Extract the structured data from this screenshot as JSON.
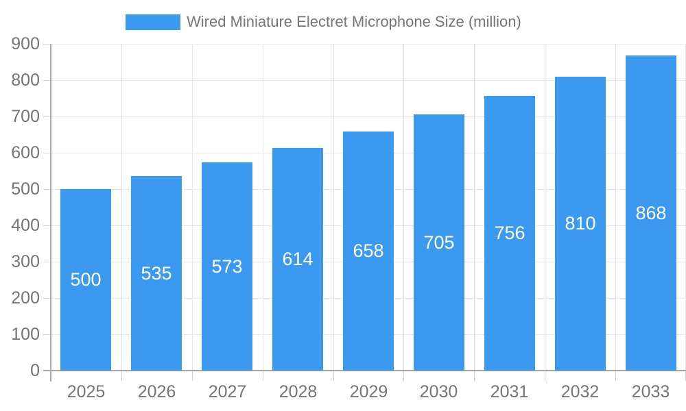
{
  "chart_data": {
    "type": "bar",
    "title": "Wired Miniature Electret Microphone Size (million)",
    "categories": [
      "2025",
      "2026",
      "2027",
      "2028",
      "2029",
      "2030",
      "2031",
      "2032",
      "2033"
    ],
    "values": [
      500,
      535,
      573,
      614,
      658,
      705,
      756,
      810,
      868
    ],
    "xlabel": "",
    "ylabel": "",
    "ylim": [
      0,
      900
    ],
    "yticks": [
      0,
      100,
      200,
      300,
      400,
      500,
      600,
      700,
      800,
      900
    ],
    "grid": true,
    "legend_position": "top",
    "value_label_position": "inside-center"
  },
  "legend": {
    "series_label": "Wired Miniature Electret Microphone Size (million)"
  },
  "colors": {
    "bar": "#3b99f0",
    "grid": "#e6e6e6",
    "axis": "#a6a6a6",
    "tick": "#d4d4d4",
    "text": "#757575",
    "bar_label": "#ffffff",
    "background": "#ffffff"
  }
}
